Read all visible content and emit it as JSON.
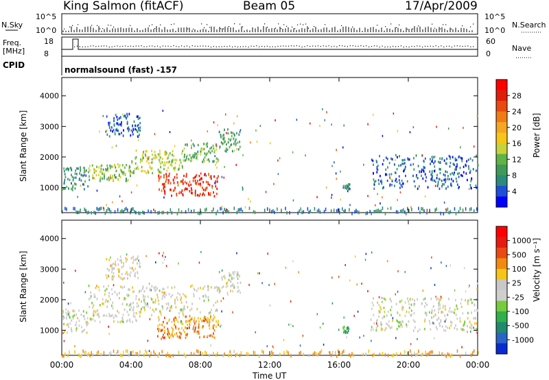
{
  "header": {
    "station": "King Salmon (fitACF)",
    "beam": "Beam 05",
    "date": "17/Apr/2009"
  },
  "top_panels": {
    "nsky_label": "N.Sky",
    "nsearch_label": "N.Search",
    "freq_label_1": "Freq.",
    "freq_label_2": "[MHz]",
    "nave_label": "Nave",
    "cpid_label": "CPID",
    "cpid_text": "normalsound (fast) -157",
    "noise_ticks_left": [
      "10^5",
      "10^0"
    ],
    "noise_ticks_right": [
      "10^5",
      "10^0"
    ],
    "freq_ticks": [
      "18",
      "8"
    ],
    "nave_ticks": [
      "60",
      "0"
    ]
  },
  "colors": {
    "power_scale": [
      "#0000ff",
      "#1e4fd6",
      "#2b8a7a",
      "#3f9a5a",
      "#5fb347",
      "#c8d23a",
      "#f5c518",
      "#f5a623",
      "#f07b16",
      "#e84a10",
      "#e01f0a",
      "#ff0000"
    ],
    "velocity_scale": [
      "#0a2bd2",
      "#2a64c8",
      "#1f8a6e",
      "#2fb04a",
      "#75cc3c",
      "#cfcfcf",
      "#c8c8c8",
      "#f5c518",
      "#f08a10",
      "#ea4a12",
      "#e61a10",
      "#ff0000"
    ]
  },
  "chart_data": [
    {
      "type": "heatmap",
      "panel": "power",
      "ylabel": "Slant Range [km]",
      "yticks": [
        "1000",
        "2000",
        "3000",
        "4000"
      ],
      "ylim": [
        180,
        4600
      ],
      "colorbar_label": "Power [dB]",
      "colorbar_ticks": [
        "4",
        "8",
        "12",
        "16",
        "20",
        "24",
        "28"
      ],
      "regions": [
        {
          "t": [
            0.0,
            1.5
          ],
          "r": [
            950,
            1700
          ],
          "level": 0.25
        },
        {
          "t": [
            1.5,
            4.0
          ],
          "r": [
            1250,
            1800
          ],
          "level": 0.4
        },
        {
          "t": [
            4.0,
            7.0
          ],
          "r": [
            1500,
            2250
          ],
          "level": 0.45
        },
        {
          "t": [
            7.0,
            9.0
          ],
          "r": [
            1850,
            2500
          ],
          "level": 0.35
        },
        {
          "t": [
            2.5,
            4.5
          ],
          "r": [
            2700,
            3450
          ],
          "level": 0.15
        },
        {
          "t": [
            9.0,
            10.3
          ],
          "r": [
            2200,
            2950
          ],
          "level": 0.3
        },
        {
          "t": [
            5.5,
            9.0
          ],
          "r": [
            750,
            1500
          ],
          "level": 0.85
        },
        {
          "t": [
            16.2,
            16.6
          ],
          "r": [
            950,
            1150
          ],
          "level": 0.2
        },
        {
          "t": [
            17.8,
            24.0
          ],
          "r": [
            1000,
            2100
          ],
          "level": 0.15
        }
      ]
    },
    {
      "type": "heatmap",
      "panel": "velocity",
      "ylabel": "Slant Range [km]",
      "yticks": [
        "1000",
        "2000",
        "3000",
        "4000"
      ],
      "ylim": [
        180,
        4600
      ],
      "colorbar_label": "Velocity [m s⁻¹]",
      "colorbar_ticks": [
        "1000",
        "500",
        "100",
        "25",
        "-25",
        "-100",
        "-500",
        "-1000"
      ],
      "regions": [
        {
          "t": [
            0.0,
            1.5
          ],
          "r": [
            950,
            1700
          ],
          "level": 0.5
        },
        {
          "t": [
            1.5,
            9.0
          ],
          "r": [
            1300,
            2500
          ],
          "level": 0.5
        },
        {
          "t": [
            2.5,
            4.5
          ],
          "r": [
            2700,
            3450
          ],
          "level": 0.55
        },
        {
          "t": [
            9.0,
            10.3
          ],
          "r": [
            2200,
            2950
          ],
          "level": 0.5
        },
        {
          "t": [
            5.5,
            9.0
          ],
          "r": [
            750,
            1500
          ],
          "level": 0.7
        },
        {
          "t": [
            16.2,
            16.6
          ],
          "r": [
            950,
            1150
          ],
          "level": 0.3
        },
        {
          "t": [
            17.8,
            24.0
          ],
          "r": [
            1000,
            2100
          ],
          "level": 0.5
        }
      ]
    }
  ],
  "xaxis": {
    "label": "Time UT",
    "ticks": [
      "00:00",
      "04:00",
      "08:00",
      "12:00",
      "16:00",
      "20:00",
      "00:00"
    ]
  }
}
